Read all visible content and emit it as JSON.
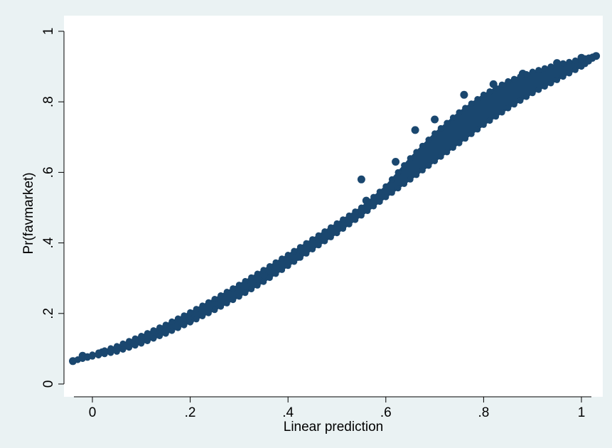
{
  "chart_data": {
    "type": "line",
    "title": "",
    "xlabel": "Linear prediction",
    "ylabel": "Pr(favmarket)",
    "xlim": [
      -0.04,
      1.03
    ],
    "ylim": [
      0,
      1
    ],
    "x_ticks": [
      0,
      0.2,
      0.4,
      0.6,
      0.8,
      1
    ],
    "x_tick_labels": [
      "0",
      ".2",
      ".4",
      ".6",
      ".8",
      "1"
    ],
    "y_ticks": [
      0,
      0.2,
      0.4,
      0.6,
      0.8,
      1
    ],
    "y_tick_labels": [
      "0",
      ".2",
      ".4",
      ".6",
      ".8",
      "1"
    ],
    "grid": false,
    "legend": "none",
    "series_color": "#1a476f",
    "series": [
      {
        "band": true,
        "x": [
          -0.04,
          0.0,
          0.05,
          0.1,
          0.15,
          0.2,
          0.25,
          0.3,
          0.35,
          0.4,
          0.45,
          0.5,
          0.55,
          0.6,
          0.65,
          0.7,
          0.75,
          0.8,
          0.85,
          0.9,
          0.95,
          1.0,
          1.03
        ],
        "upper": [
          0.065,
          0.083,
          0.107,
          0.136,
          0.168,
          0.203,
          0.241,
          0.281,
          0.323,
          0.366,
          0.41,
          0.455,
          0.5,
          0.56,
          0.64,
          0.71,
          0.77,
          0.82,
          0.858,
          0.885,
          0.905,
          0.921,
          0.93
        ],
        "lower": [
          0.065,
          0.078,
          0.092,
          0.115,
          0.143,
          0.175,
          0.21,
          0.248,
          0.29,
          0.335,
          0.382,
          0.428,
          0.478,
          0.53,
          0.58,
          0.632,
          0.683,
          0.735,
          0.782,
          0.825,
          0.862,
          0.9,
          0.93
        ]
      }
    ],
    "points": [
      {
        "x": -0.04,
        "y": 0.065
      },
      {
        "x": -0.02,
        "y": 0.08
      },
      {
        "x": 0.02,
        "y": 0.09
      },
      {
        "x": 0.1,
        "y": 0.13
      },
      {
        "x": 0.15,
        "y": 0.15
      },
      {
        "x": 0.2,
        "y": 0.18
      },
      {
        "x": 0.35,
        "y": 0.31
      },
      {
        "x": 0.42,
        "y": 0.36
      },
      {
        "x": 0.55,
        "y": 0.58
      },
      {
        "x": 0.56,
        "y": 0.52
      },
      {
        "x": 0.62,
        "y": 0.63
      },
      {
        "x": 0.66,
        "y": 0.72
      },
      {
        "x": 0.7,
        "y": 0.75
      },
      {
        "x": 0.76,
        "y": 0.82
      },
      {
        "x": 0.82,
        "y": 0.85
      },
      {
        "x": 0.88,
        "y": 0.88
      },
      {
        "x": 0.95,
        "y": 0.91
      },
      {
        "x": 1.0,
        "y": 0.925
      },
      {
        "x": 1.03,
        "y": 0.93
      }
    ]
  }
}
